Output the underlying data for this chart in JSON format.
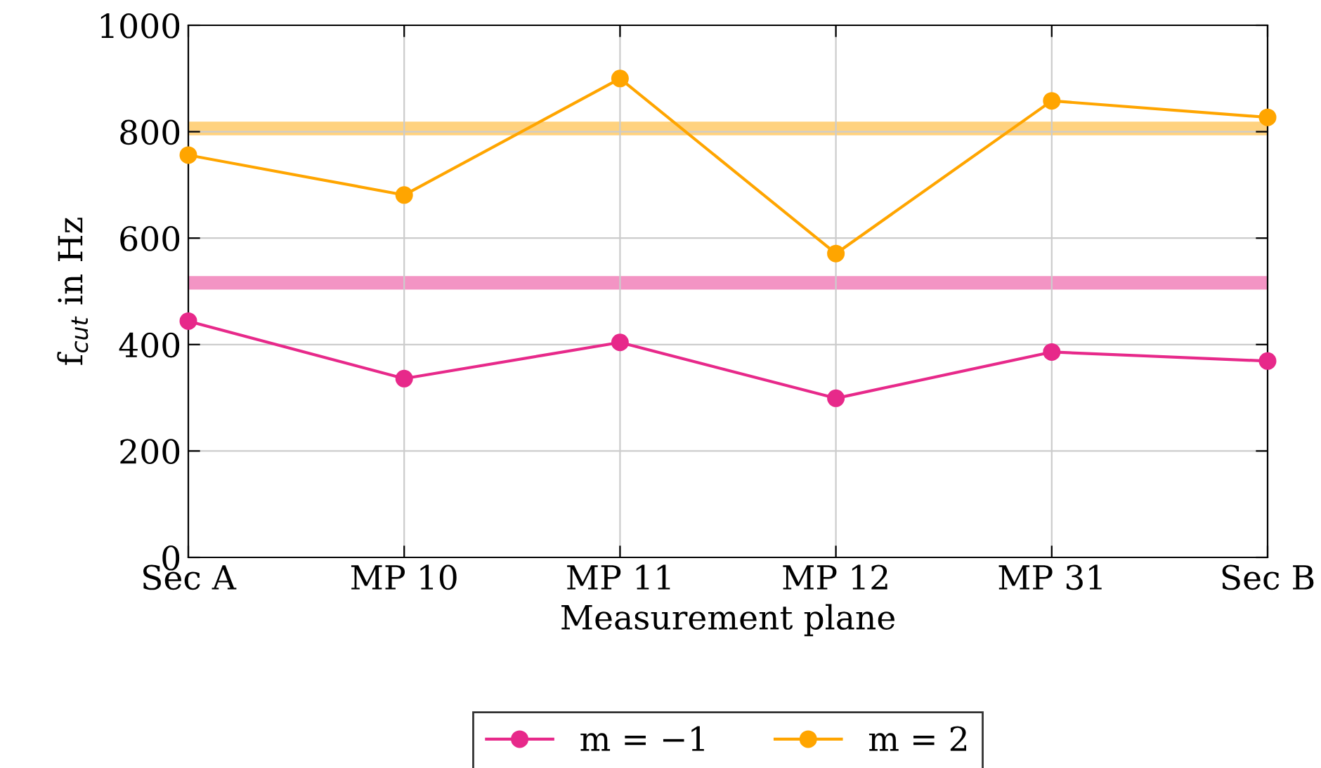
{
  "chart_data": {
    "type": "line",
    "xlabel": "Measurement plane",
    "ylabel": "f$_{cut}$ in Hz",
    "categories": [
      "Sec A",
      "MP 10",
      "MP 11",
      "MP 12",
      "MP 31",
      "Sec B"
    ],
    "series": [
      {
        "name": "m = −1",
        "color": "#e7298a",
        "values": [
          444,
          336,
          404,
          299,
          386,
          369
        ]
      },
      {
        "name": "m = 2",
        "color": "#ffa500",
        "values": [
          756,
          681,
          900,
          571,
          858,
          827
        ]
      }
    ],
    "ref_lines": [
      {
        "axis": "y",
        "value": 806,
        "color": "#ffa500"
      },
      {
        "axis": "y",
        "value": 516,
        "color": "#e7298a"
      }
    ],
    "ylim": [
      0,
      1000
    ],
    "yticks": [
      0,
      200,
      400,
      600,
      800,
      1000
    ],
    "grid": true,
    "legend": "bottom",
    "marker": "circle",
    "line_style": "solid"
  }
}
